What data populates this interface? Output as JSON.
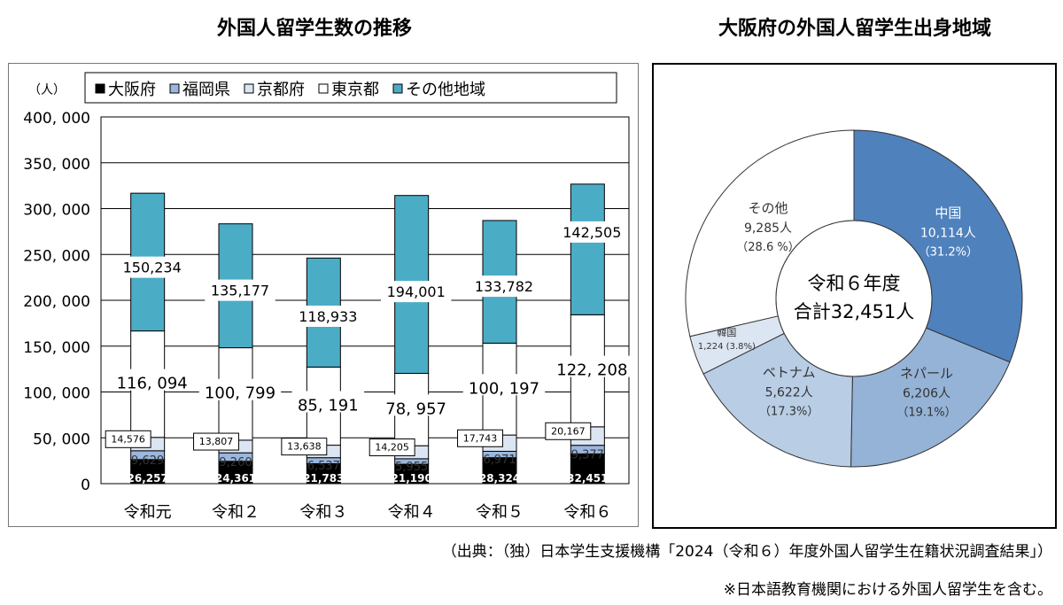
{
  "titles": {
    "bar": "外国人留学生数の推移",
    "pie": "大阪府の外国人留学生出身地域"
  },
  "colors": {
    "osaka": "#000000",
    "fukuoka": "#9bb7dd",
    "kyoto": "#dce6f2",
    "tokyo": "#ffffff",
    "other": "#4bacc6",
    "china": "#4f81bd",
    "nepal": "#95b3d7",
    "vietnam": "#b9cde5",
    "korea": "#dce6f2",
    "pie_other": "#ffffff"
  },
  "chart_data": [
    {
      "type": "bar",
      "stacked": true,
      "title": "外国人留学生数の推移",
      "unit_label": "（人）",
      "categories": [
        "令和元",
        "令和２",
        "令和３",
        "令和４",
        "令和５",
        "令和６"
      ],
      "ylim": [
        0,
        400000
      ],
      "yticks": [
        0,
        50000,
        100000,
        150000,
        200000,
        250000,
        300000,
        350000,
        400000
      ],
      "ytick_labels": [
        "0",
        "50, 000",
        "100, 000",
        "150, 000",
        "200, 000",
        "250, 000",
        "300, 000",
        "350, 000",
        "400, 000"
      ],
      "grid": true,
      "legend": "top",
      "series": [
        {
          "name": "大阪府",
          "key": "osaka",
          "values": [
            26257,
            24361,
            21783,
            21190,
            28324,
            32451
          ],
          "labels": [
            "26,257",
            "24,361",
            "21,783",
            "21,190",
            "28,324",
            "32,451"
          ]
        },
        {
          "name": "福岡県",
          "key": "fukuoka",
          "values": [
            9629,
            9260,
            6537,
            5955,
            6971,
            9377
          ],
          "labels": [
            "9,629",
            "9,260",
            "6,537",
            "5,955",
            "6,971",
            "9,377"
          ]
        },
        {
          "name": "京都府",
          "key": "kyoto",
          "values": [
            14576,
            13807,
            13638,
            14205,
            17743,
            20167
          ],
          "labels": [
            "14,576",
            "13,807",
            "13,638",
            "14,205",
            "17,743",
            "20,167"
          ]
        },
        {
          "name": "東京都",
          "key": "tokyo",
          "values": [
            116094,
            100799,
            85191,
            78957,
            100197,
            122208
          ],
          "labels": [
            "116, 094",
            "100, 799",
            "85, 191",
            "78, 957",
            "100, 197",
            "122, 208"
          ]
        },
        {
          "name": "その他地域",
          "key": "other",
          "values": [
            150234,
            135177,
            118933,
            194001,
            133782,
            142505
          ],
          "labels": [
            "150,234",
            "135,177",
            "118,933",
            "194,001",
            "133,782",
            "142,505"
          ]
        }
      ]
    },
    {
      "type": "pie",
      "donut": true,
      "title": "大阪府の外国人留学生出身地域",
      "center_text": [
        "令和６年度",
        "合計32,451人"
      ],
      "slices": [
        {
          "name": "中国",
          "key": "china",
          "value": 10114,
          "count_label": "10,114人",
          "pct_label": "（31.2%）"
        },
        {
          "name": "ネパール",
          "key": "nepal",
          "value": 6206,
          "count_label": "6,206人",
          "pct_label": "（19.1%）"
        },
        {
          "name": "ベトナム",
          "key": "vietnam",
          "value": 5622,
          "count_label": "5,622人",
          "pct_label": "（17.3%）"
        },
        {
          "name": "韓国",
          "key": "korea",
          "value": 1224,
          "count_label": "1,224 (3.8%)",
          "pct_label": ""
        },
        {
          "name": "その他",
          "key": "pie_other",
          "value": 9285,
          "count_label": "9,285人",
          "pct_label": "（28.6 %）"
        }
      ]
    }
  ],
  "footer": {
    "source": "（出典：（独）日本学生支援機構「2024（令和６）年度外国人留学生在籍状況調査結果」）",
    "note": "※日本語教育機関における外国人留学生を含む。"
  }
}
